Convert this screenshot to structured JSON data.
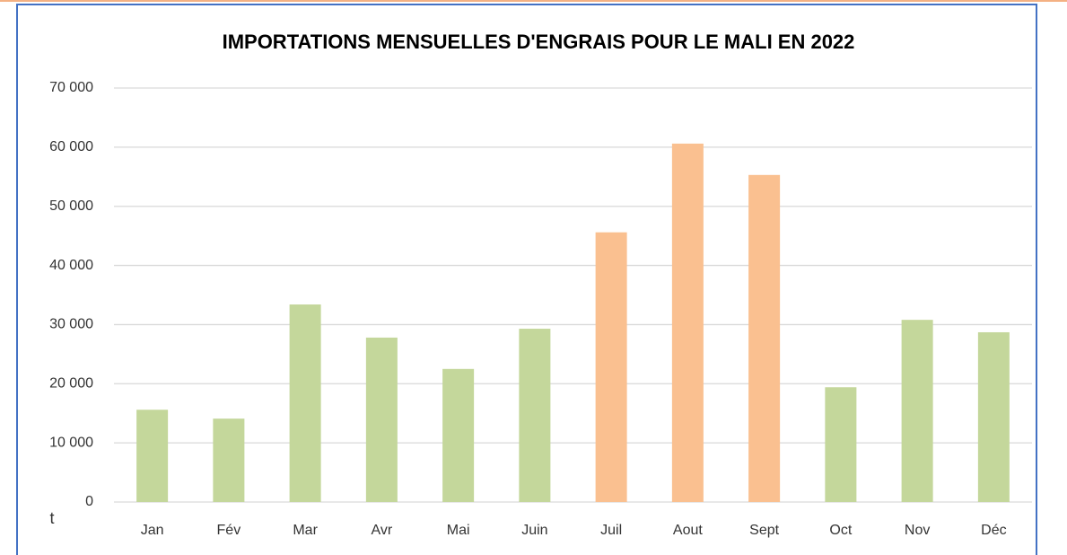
{
  "chart_data": {
    "type": "bar",
    "title": "IMPORTATIONS MENSUELLES D'ENGRAIS POUR LE MALI EN 2022",
    "ylabel": "t",
    "categories": [
      "Jan",
      "Fév",
      "Mar",
      "Avr",
      "Mai",
      "Juin",
      "Juil",
      "Aout",
      "Sept",
      "Oct",
      "Nov",
      "Déc"
    ],
    "values": [
      15600,
      14100,
      33400,
      27800,
      22500,
      29300,
      45600,
      60600,
      55300,
      19400,
      30800,
      28700
    ],
    "colors": [
      "#c4d79b",
      "#c4d79b",
      "#c4d79b",
      "#c4d79b",
      "#c4d79b",
      "#c4d79b",
      "#fac090",
      "#fac090",
      "#fac090",
      "#c4d79b",
      "#c4d79b",
      "#c4d79b"
    ],
    "ylim": [
      0,
      70000
    ],
    "yticks": [
      0,
      {
        "value": 10000,
        "label": "10 000"
      },
      {
        "value": 20000,
        "label": "20 000"
      },
      {
        "value": 30000,
        "label": "30 000"
      },
      {
        "value": 40000,
        "label": "40 000"
      },
      {
        "value": 50000,
        "label": "50 000"
      },
      {
        "value": 60000,
        "label": "60 000"
      },
      {
        "value": 70000,
        "label": "70 000"
      }
    ],
    "grid": true
  }
}
